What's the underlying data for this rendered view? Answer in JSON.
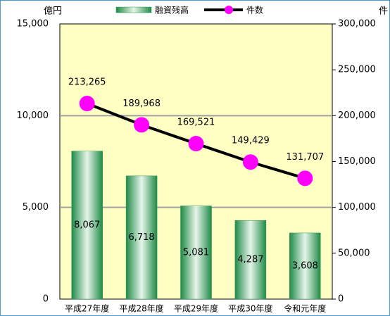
{
  "chart_data": {
    "type": "bar",
    "categories": [
      "平成27年度",
      "平成28年度",
      "平成29年度",
      "平成30年度",
      "令和元年度"
    ],
    "ylabel": "億円",
    "y2label": "件",
    "ylim": [
      0,
      15000
    ],
    "yticks": [
      0,
      {
        "value": 5000,
        "label": "5,000"
      },
      {
        "value": 10000,
        "label": "10,000"
      },
      {
        "value": 15000,
        "label": "15,000"
      }
    ],
    "y2lim": [
      0,
      300000
    ],
    "y2ticks": [
      0,
      {
        "value": 50000,
        "label": "50,000"
      },
      {
        "value": 100000,
        "label": "100,000"
      },
      {
        "value": 150000,
        "label": "150,000"
      },
      {
        "value": 200000,
        "label": "200,000"
      },
      {
        "value": 250000,
        "label": "250,000"
      },
      {
        "value": 300000,
        "label": "300,000"
      }
    ],
    "grid": true,
    "plot_background": "#ffffc4",
    "series": [
      {
        "name": "融資残高",
        "type": "bar",
        "color": "#2a9a55",
        "values": [
          8067,
          6718,
          5081,
          4287,
          3608
        ],
        "value_labels": [
          "8,067",
          "6,718",
          "5,081",
          "4,287",
          "3,608"
        ]
      },
      {
        "name": "件数",
        "type": "line",
        "axis": "y2",
        "color": "#000000",
        "marker_color": "#ff00ff",
        "values": [
          213265,
          189968,
          169521,
          149429,
          131707
        ],
        "value_labels": [
          "213,265",
          "189,968",
          "169,521",
          "149,429",
          "131,707"
        ]
      }
    ]
  }
}
